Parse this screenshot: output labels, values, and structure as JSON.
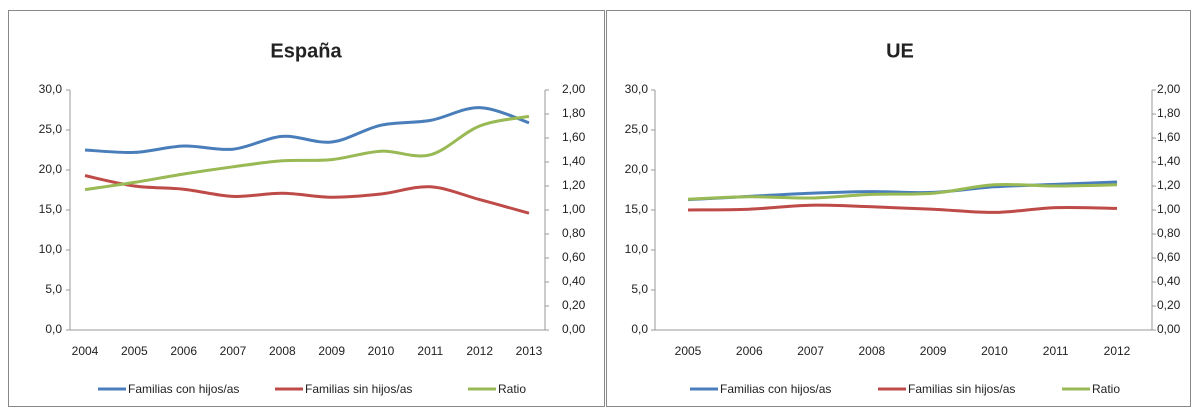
{
  "chart_data": [
    {
      "type": "line",
      "title": "España",
      "categories": [
        "2004",
        "2005",
        "2006",
        "2007",
        "2008",
        "2009",
        "2010",
        "2011",
        "2012",
        "2013"
      ],
      "series": [
        {
          "name": "Familias con hijos/as",
          "color": "#4a7ebb",
          "values": [
            22.5,
            22.2,
            23.0,
            22.6,
            24.2,
            23.5,
            25.6,
            26.2,
            27.8,
            25.9
          ]
        },
        {
          "name": "Familias sin hijos/as",
          "color": "#be4b48",
          "values": [
            19.3,
            18.0,
            17.6,
            16.7,
            17.1,
            16.6,
            17.0,
            17.9,
            16.3,
            14.6
          ]
        },
        {
          "name": "Ratio",
          "color": "#98b954",
          "axis": "y2",
          "values": [
            1.17,
            1.23,
            1.3,
            1.36,
            1.41,
            1.42,
            1.49,
            1.46,
            1.7,
            1.78
          ]
        }
      ],
      "ylim": [
        0,
        30
      ],
      "yticks": [
        {
          "value": 0,
          "label": "0,0"
        },
        {
          "value": 5,
          "label": "5,0"
        },
        {
          "value": 10,
          "label": "10,0"
        },
        {
          "value": 15,
          "label": "15,0"
        },
        {
          "value": 20,
          "label": "20,0"
        },
        {
          "value": 25,
          "label": "25,0"
        },
        {
          "value": 30,
          "label": "30,0"
        }
      ],
      "y2lim": [
        0,
        2
      ],
      "y2ticks": [
        {
          "value": 0,
          "label": "0,00"
        },
        {
          "value": 0.2,
          "label": "0,20"
        },
        {
          "value": 0.4,
          "label": "0,40"
        },
        {
          "value": 0.6,
          "label": "0,60"
        },
        {
          "value": 0.8,
          "label": "0,80"
        },
        {
          "value": 1,
          "label": "1,00"
        },
        {
          "value": 1.2,
          "label": "1,20"
        },
        {
          "value": 1.4,
          "label": "1,40"
        },
        {
          "value": 1.6,
          "label": "1,60"
        },
        {
          "value": 1.8,
          "label": "1,80"
        },
        {
          "value": 2,
          "label": "2,00"
        }
      ]
    },
    {
      "type": "line",
      "title": "UE",
      "categories": [
        "2005",
        "2006",
        "2007",
        "2008",
        "2009",
        "2010",
        "2011",
        "2012"
      ],
      "series": [
        {
          "name": "Familias con hijos/as",
          "color": "#4a7ebb",
          "values": [
            16.3,
            16.7,
            17.1,
            17.3,
            17.2,
            17.9,
            18.2,
            18.5
          ]
        },
        {
          "name": "Familias sin hijos/as",
          "color": "#be4b48",
          "values": [
            15.0,
            15.1,
            15.6,
            15.4,
            15.1,
            14.7,
            15.3,
            15.2
          ]
        },
        {
          "name": "Ratio",
          "color": "#98b954",
          "axis": "y2",
          "values": [
            1.09,
            1.11,
            1.1,
            1.13,
            1.14,
            1.21,
            1.2,
            1.21
          ]
        }
      ],
      "ylim": [
        0,
        30
      ],
      "yticks": [
        {
          "value": 0,
          "label": "0,0"
        },
        {
          "value": 5,
          "label": "5,0"
        },
        {
          "value": 10,
          "label": "10,0"
        },
        {
          "value": 15,
          "label": "15,0"
        },
        {
          "value": 20,
          "label": "20,0"
        },
        {
          "value": 25,
          "label": "25,0"
        },
        {
          "value": 30,
          "label": "30,0"
        }
      ],
      "y2lim": [
        0,
        2
      ],
      "y2ticks": [
        {
          "value": 0,
          "label": "0,00"
        },
        {
          "value": 0.2,
          "label": "0,20"
        },
        {
          "value": 0.4,
          "label": "0,40"
        },
        {
          "value": 0.6,
          "label": "0,60"
        },
        {
          "value": 0.8,
          "label": "0,80"
        },
        {
          "value": 1,
          "label": "1,00"
        },
        {
          "value": 1.2,
          "label": "1,20"
        },
        {
          "value": 1.4,
          "label": "1,40"
        },
        {
          "value": 1.6,
          "label": "1,60"
        },
        {
          "value": 1.8,
          "label": "1,80"
        },
        {
          "value": 2,
          "label": "2,00"
        }
      ]
    }
  ]
}
